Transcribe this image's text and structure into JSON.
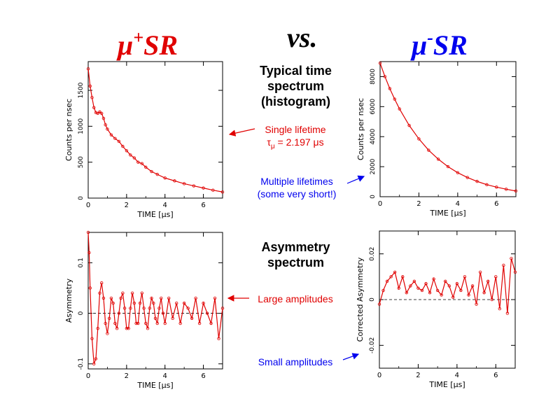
{
  "headings": {
    "left": {
      "base": "μ",
      "sup": "+",
      "rest": "SR",
      "color": "#e00000"
    },
    "mid": "vs.",
    "right": {
      "base": "μ",
      "sup": "-",
      "rest": "SR",
      "color": "#0000ee"
    }
  },
  "middle_labels": {
    "time_spectrum": [
      "Typical time",
      "spectrum",
      "(histogram)"
    ],
    "asymmetry_spectrum": [
      "Asymmetry",
      "spectrum"
    ]
  },
  "annotations": {
    "single_lifetime": {
      "line1": "Single lifetime",
      "tau": "τ",
      "tau_sub": "μ",
      "tau_rest": " = 2.197 μs",
      "color": "#e00000"
    },
    "multiple_lifetimes": {
      "line1": "Multiple lifetimes",
      "line2": "(some very short!)",
      "color": "#0000ee"
    },
    "large_amplitudes": {
      "text": "Large amplitudes",
      "color": "#e00000"
    },
    "small_amplitudes": {
      "text": "Small amplitudes",
      "color": "#0000ee"
    }
  },
  "chart_data": [
    {
      "id": "muplus-histogram",
      "type": "scatter",
      "title": "",
      "xlabel": "TIME [μs]",
      "ylabel": "Counts per nsec",
      "xlim": [
        0,
        7
      ],
      "ylim": [
        0,
        1900
      ],
      "xticks": [
        0,
        2,
        4,
        6
      ],
      "yticks": [
        0,
        500,
        1000,
        1500
      ],
      "grid": false,
      "series": [
        {
          "x": [
            0,
            0.1,
            0.2,
            0.3,
            0.4,
            0.5,
            0.6,
            0.7,
            0.8,
            0.9,
            1.0,
            1.2,
            1.4,
            1.6,
            1.8,
            2.0,
            2.2,
            2.4,
            2.6,
            2.8,
            3.0,
            3.3,
            3.6,
            4.0,
            4.5,
            5.0,
            5.5,
            6.0,
            6.5,
            7.0
          ],
          "y": [
            1800,
            1560,
            1400,
            1260,
            1190,
            1180,
            1200,
            1180,
            1110,
            1020,
            960,
            880,
            830,
            790,
            720,
            660,
            600,
            560,
            500,
            480,
            430,
            370,
            330,
            280,
            240,
            200,
            170,
            140,
            110,
            85
          ],
          "color": "#e00000"
        }
      ]
    },
    {
      "id": "muminus-histogram",
      "type": "scatter",
      "title": "",
      "xlabel": "TIME [μs]",
      "ylabel": "Counts per nsec",
      "xlim": [
        0,
        7
      ],
      "ylim": [
        0,
        9000
      ],
      "xticks": [
        0,
        2,
        4,
        6
      ],
      "yticks": [
        0,
        2000,
        4000,
        6000,
        8000
      ],
      "grid": false,
      "series": [
        {
          "x": [
            0,
            0.25,
            0.5,
            0.75,
            1.0,
            1.5,
            2.0,
            2.5,
            3.0,
            3.5,
            4.0,
            4.5,
            5.0,
            5.5,
            6.0,
            6.5,
            7.0
          ],
          "y": [
            8900,
            8000,
            7200,
            6500,
            5850,
            4750,
            3850,
            3100,
            2500,
            2000,
            1600,
            1280,
            1020,
            800,
            640,
            500,
            380
          ],
          "color": "#e00000"
        }
      ]
    },
    {
      "id": "muplus-asymmetry",
      "type": "scatter",
      "title": "",
      "xlabel": "TIME [μs]",
      "ylabel": "Asymmetry",
      "xlim": [
        0,
        7
      ],
      "ylim": [
        -0.11,
        0.16
      ],
      "xticks": [
        0,
        2,
        4,
        6
      ],
      "yticks": [
        -0.1,
        0,
        0.1
      ],
      "grid": false,
      "series": [
        {
          "x": [
            0,
            0.05,
            0.1,
            0.2,
            0.3,
            0.4,
            0.5,
            0.6,
            0.7,
            0.8,
            0.9,
            1.0,
            1.1,
            1.2,
            1.3,
            1.4,
            1.5,
            1.6,
            1.7,
            1.8,
            1.9,
            2.0,
            2.1,
            2.2,
            2.3,
            2.4,
            2.5,
            2.6,
            2.7,
            2.8,
            2.9,
            3.0,
            3.1,
            3.2,
            3.3,
            3.4,
            3.5,
            3.6,
            3.7,
            3.8,
            3.9,
            4.0,
            4.2,
            4.4,
            4.6,
            4.8,
            5.0,
            5.2,
            5.4,
            5.6,
            5.8,
            6.0,
            6.2,
            6.4,
            6.6,
            6.8,
            7.0
          ],
          "y": [
            0.16,
            0.12,
            0.05,
            -0.05,
            -0.1,
            -0.09,
            -0.03,
            0.04,
            0.06,
            0.03,
            -0.02,
            -0.04,
            -0.01,
            0.03,
            0.02,
            -0.02,
            -0.03,
            0.0,
            0.03,
            0.04,
            0.01,
            -0.03,
            -0.03,
            0.01,
            0.04,
            0.02,
            -0.02,
            -0.02,
            0.02,
            0.04,
            0.01,
            -0.02,
            -0.03,
            0.01,
            0.03,
            0.02,
            -0.01,
            -0.02,
            0.01,
            0.03,
            0.0,
            -0.02,
            0.03,
            -0.01,
            0.02,
            -0.02,
            0.02,
            0.01,
            -0.01,
            0.03,
            -0.02,
            0.02,
            0.0,
            -0.02,
            0.03,
            -0.05,
            0.01
          ],
          "color": "#e00000"
        }
      ]
    },
    {
      "id": "muminus-asymmetry",
      "type": "scatter",
      "title": "",
      "xlabel": "TIME [μs]",
      "ylabel": "Corrected Asymmetry",
      "xlim": [
        0,
        7
      ],
      "ylim": [
        -0.03,
        0.03
      ],
      "xticks": [
        0,
        2,
        4,
        6
      ],
      "yticks": [
        -0.02,
        0,
        0.02
      ],
      "grid": false,
      "series": [
        {
          "x": [
            0.0,
            0.2,
            0.4,
            0.6,
            0.8,
            1.0,
            1.2,
            1.4,
            1.6,
            1.8,
            2.0,
            2.2,
            2.4,
            2.6,
            2.8,
            3.0,
            3.2,
            3.4,
            3.6,
            3.8,
            4.0,
            4.2,
            4.4,
            4.6,
            4.8,
            5.0,
            5.2,
            5.4,
            5.6,
            5.8,
            6.0,
            6.2,
            6.4,
            6.6,
            6.8,
            7.0
          ],
          "y": [
            -0.002,
            0.004,
            0.008,
            0.01,
            0.012,
            0.005,
            0.01,
            0.003,
            0.006,
            0.008,
            0.005,
            0.004,
            0.007,
            0.003,
            0.009,
            0.004,
            0.002,
            0.008,
            0.006,
            0.001,
            0.007,
            0.004,
            0.01,
            0.002,
            0.006,
            -0.002,
            0.012,
            0.003,
            0.008,
            0.0,
            0.01,
            -0.004,
            0.015,
            -0.006,
            0.018,
            0.012
          ],
          "color": "#e00000"
        }
      ]
    }
  ]
}
